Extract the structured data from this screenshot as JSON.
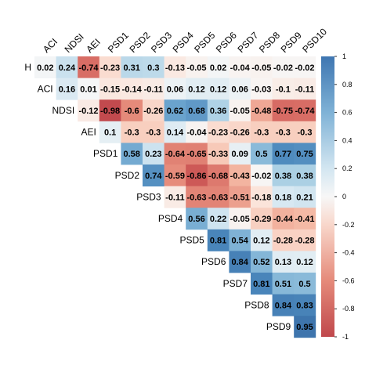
{
  "chart_data": {
    "type": "heatmap",
    "title": "",
    "variables": [
      "H",
      "ACI",
      "NDSI",
      "AEI",
      "PSD1",
      "PSD2",
      "PSD3",
      "PSD4",
      "PSD5",
      "PSD6",
      "PSD7",
      "PSD8",
      "PSD9",
      "PSD10"
    ],
    "row_labels": [
      "H",
      "ACI",
      "NDSI",
      "AEI",
      "PSD1",
      "PSD2",
      "PSD3",
      "PSD4",
      "PSD5",
      "PSD6",
      "PSD7",
      "PSD8",
      "PSD9"
    ],
    "col_labels": [
      "ACI",
      "NDSI",
      "AEI",
      "PSD1",
      "PSD2",
      "PSD3",
      "PSD4",
      "PSD5",
      "PSD6",
      "PSD7",
      "PSD8",
      "PSD9",
      "PSD10"
    ],
    "matrix": [
      [
        0.02,
        0.24,
        -0.74,
        -0.23,
        0.31,
        0.3,
        -0.13,
        -0.05,
        0.02,
        -0.04,
        -0.05,
        -0.02,
        -0.02
      ],
      [
        null,
        0.16,
        0.01,
        -0.15,
        -0.14,
        -0.11,
        0.06,
        0.12,
        0.12,
        0.06,
        -0.03,
        -0.1,
        -0.11
      ],
      [
        null,
        null,
        -0.12,
        -0.98,
        -0.6,
        -0.26,
        0.62,
        0.68,
        0.36,
        -0.05,
        -0.48,
        -0.75,
        -0.74
      ],
      [
        null,
        null,
        null,
        0.1,
        -0.3,
        -0.3,
        0.14,
        -0.04,
        -0.23,
        -0.26,
        -0.3,
        -0.3,
        -0.3
      ],
      [
        null,
        null,
        null,
        null,
        0.58,
        0.23,
        -0.64,
        -0.65,
        -0.33,
        0.09,
        0.5,
        0.77,
        0.75
      ],
      [
        null,
        null,
        null,
        null,
        null,
        0.74,
        -0.59,
        -0.86,
        -0.68,
        -0.43,
        -0.02,
        0.38,
        0.38
      ],
      [
        null,
        null,
        null,
        null,
        null,
        null,
        -0.11,
        -0.63,
        -0.63,
        -0.51,
        -0.18,
        0.18,
        0.21
      ],
      [
        null,
        null,
        null,
        null,
        null,
        null,
        null,
        0.56,
        0.22,
        -0.05,
        -0.29,
        -0.44,
        -0.41
      ],
      [
        null,
        null,
        null,
        null,
        null,
        null,
        null,
        null,
        0.81,
        0.54,
        0.12,
        -0.28,
        -0.28
      ],
      [
        null,
        null,
        null,
        null,
        null,
        null,
        null,
        null,
        null,
        0.84,
        0.52,
        0.13,
        0.12
      ],
      [
        null,
        null,
        null,
        null,
        null,
        null,
        null,
        null,
        null,
        null,
        0.81,
        0.51,
        0.5
      ],
      [
        null,
        null,
        null,
        null,
        null,
        null,
        null,
        null,
        null,
        null,
        null,
        0.84,
        0.83
      ],
      [
        null,
        null,
        null,
        null,
        null,
        null,
        null,
        null,
        null,
        null,
        null,
        null,
        0.95
      ]
    ],
    "colorbar": {
      "range": [
        -1,
        1
      ],
      "ticks": [
        "1",
        "0.8",
        "0.6",
        "0.4",
        "0.2",
        "0",
        "-0.2",
        "-0.4",
        "-0.6",
        "-0.8",
        "-1"
      ],
      "low_color": "#b2182b",
      "mid_color": "#ffffff",
      "high_color": "#2166ac"
    },
    "grid": false,
    "legend": "right"
  }
}
